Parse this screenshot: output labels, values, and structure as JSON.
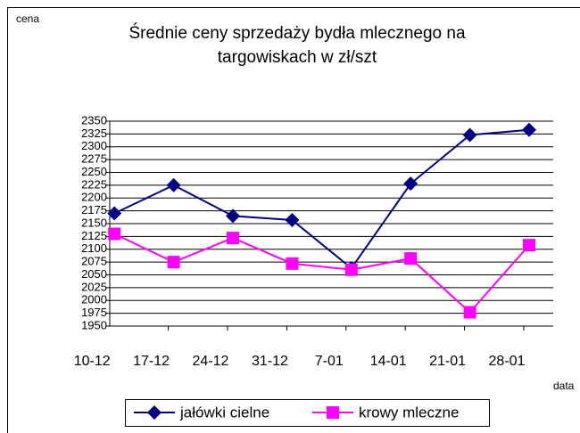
{
  "chart_data": {
    "type": "line",
    "title": "Średnie ceny sprzedaży bydła mlecznego na targowiskach w zł/szt",
    "y_label": "cena",
    "x_label": "data",
    "categories": [
      "10-12",
      "17-12",
      "24-12",
      "31-12",
      "7-01",
      "14-01",
      "21-01",
      "28-01"
    ],
    "series": [
      {
        "name": "jałówki cielne",
        "color": "#000080",
        "marker": "diamond",
        "values": [
          2170,
          2225,
          2165,
          2157,
          2063,
          2228,
          2323,
          2333
        ]
      },
      {
        "name": "krowy mleczne",
        "color": "#ff00ff",
        "marker": "square",
        "values": [
          2130,
          2075,
          2122,
          2072,
          2060,
          2082,
          1977,
          2108
        ]
      }
    ],
    "ylim": [
      1950,
      2350
    ],
    "yticks": [
      1950,
      1975,
      2000,
      2025,
      2050,
      2075,
      2100,
      2125,
      2150,
      2175,
      2200,
      2225,
      2250,
      2275,
      2300,
      2325,
      2350
    ],
    "grid": true,
    "legend": "bottom"
  }
}
